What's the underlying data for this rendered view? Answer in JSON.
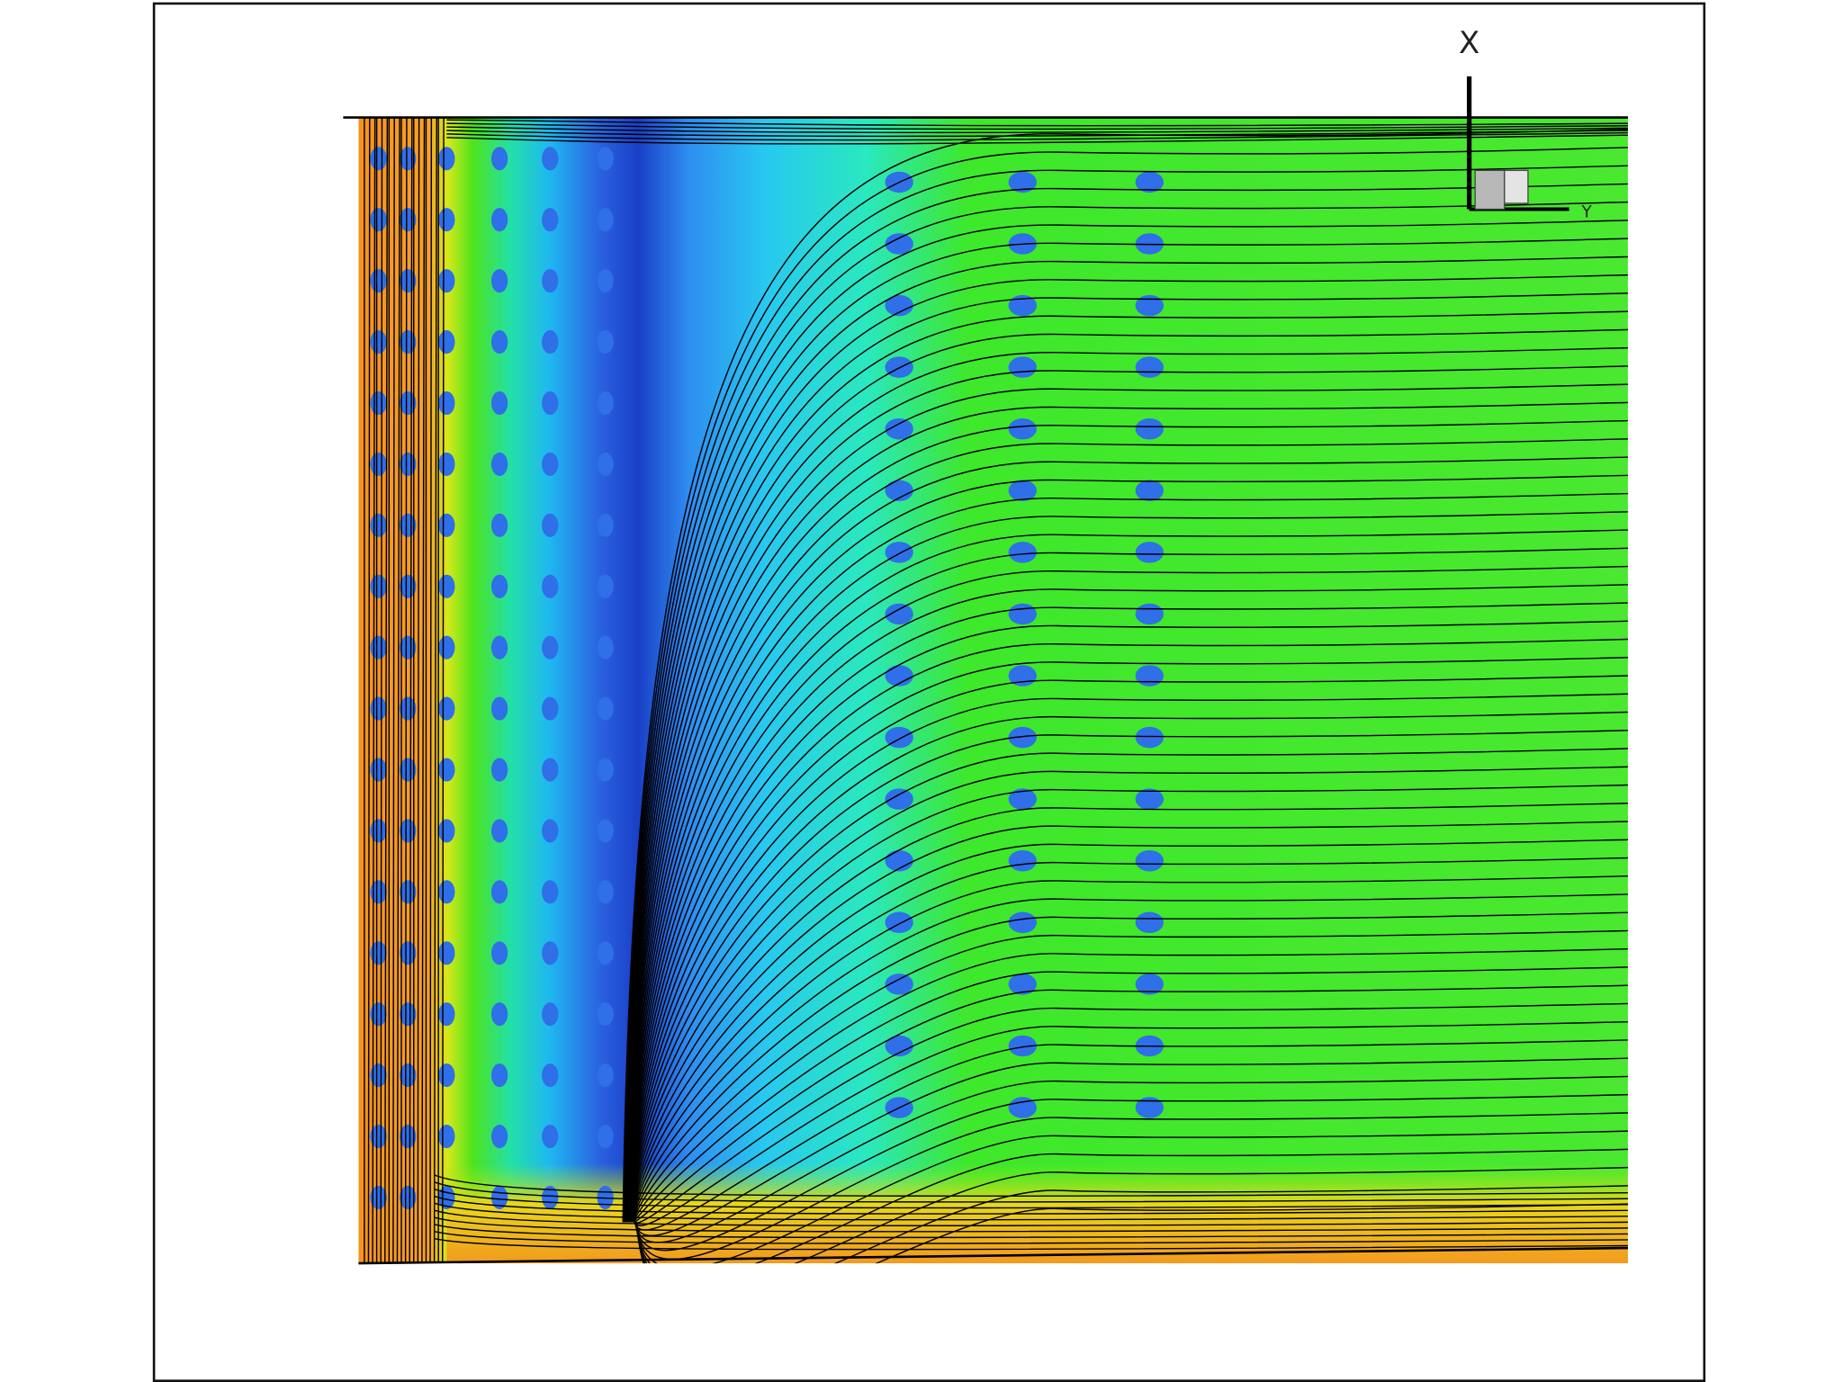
{
  "axis_labels": {
    "x": "X",
    "y": "Y"
  }
}
